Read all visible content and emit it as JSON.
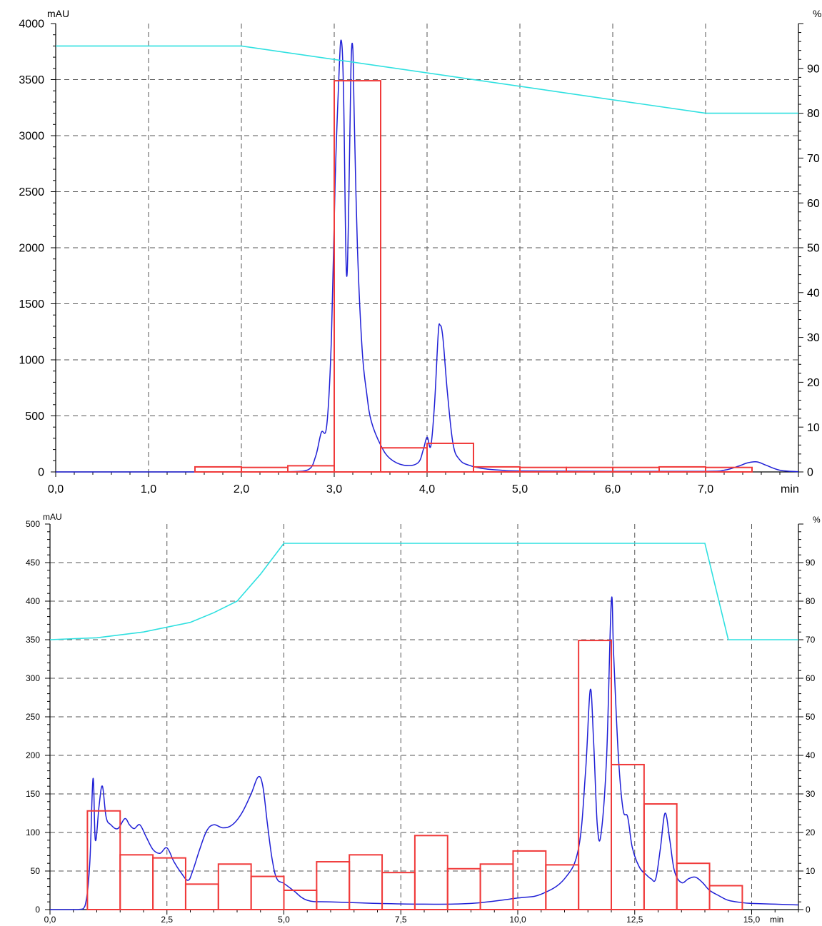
{
  "chart_data": [
    {
      "type": "line",
      "left_unit": "mAU",
      "right_unit": "%",
      "x_unit": "min",
      "xlim": [
        0,
        8
      ],
      "ylim": [
        0,
        4000
      ],
      "y2lim": [
        0,
        100
      ],
      "x_ticks": [
        "0,0",
        "1,0",
        "2,0",
        "3,0",
        "4,0",
        "5,0",
        "6,0",
        "7,0"
      ],
      "x_tick_values": [
        0,
        1,
        2,
        3,
        4,
        5,
        6,
        7
      ],
      "y_ticks": [
        "0",
        "500",
        "1000",
        "1500",
        "2000",
        "2500",
        "3000",
        "3500",
        "4000"
      ],
      "y_tick_values": [
        0,
        500,
        1000,
        1500,
        2000,
        2500,
        3000,
        3500,
        4000
      ],
      "y2_ticks": [
        "0",
        "10",
        "20",
        "30",
        "40",
        "50",
        "60",
        "70",
        "80",
        "90"
      ],
      "y2_tick_values": [
        0,
        10,
        20,
        30,
        40,
        50,
        60,
        70,
        80,
        90
      ],
      "grid": true,
      "colors": {
        "signal": "#1f1fd6",
        "fractions": "#f03a3a",
        "gradient": "#2fe0e0"
      },
      "series": [
        {
          "kind": "signal_mAU",
          "x": [
            0,
            1.0,
            2.0,
            2.5,
            2.72,
            2.8,
            2.86,
            2.92,
            2.97,
            3.01,
            3.05,
            3.075,
            3.1,
            3.13,
            3.155,
            3.18,
            3.2,
            3.215,
            3.25,
            3.3,
            3.35,
            3.4,
            3.5,
            3.6,
            3.75,
            3.9,
            3.96,
            4.0,
            4.04,
            4.08,
            4.12,
            4.14,
            4.17,
            4.22,
            4.28,
            4.35,
            4.45,
            4.6,
            4.8,
            5.0,
            6.0,
            7.0,
            7.2,
            7.35,
            7.45,
            7.55,
            7.65,
            7.8,
            8.0
          ],
          "values": [
            0,
            0,
            0,
            2,
            20,
            140,
            350,
            420,
            1200,
            2600,
            3520,
            3850,
            3400,
            1800,
            2300,
            3600,
            3780,
            3200,
            2000,
            1100,
            700,
            450,
            240,
            120,
            60,
            80,
            200,
            310,
            230,
            600,
            1230,
            1310,
            1200,
            700,
            250,
            110,
            60,
            30,
            15,
            8,
            5,
            5,
            15,
            50,
            80,
            90,
            60,
            15,
            2
          ]
        },
        {
          "kind": "gradient_percent",
          "x": [
            0,
            2.0,
            7.0,
            8.0
          ],
          "values": [
            95,
            95,
            80,
            80
          ]
        },
        {
          "kind": "fraction_mAU",
          "x_start": [
            1.5,
            2.0,
            2.5,
            3.0,
            3.5,
            4.0,
            4.5,
            5.0,
            5.5,
            6.0,
            6.5,
            7.0
          ],
          "x_end": [
            2.0,
            2.5,
            3.0,
            3.5,
            4.0,
            4.5,
            5.0,
            5.5,
            6.0,
            6.5,
            7.0,
            7.5
          ],
          "values": [
            45,
            40,
            55,
            3490,
            215,
            255,
            45,
            40,
            40,
            40,
            45,
            40
          ]
        }
      ]
    },
    {
      "type": "line",
      "left_unit": "mAU",
      "right_unit": "%",
      "x_unit": "min",
      "xlim": [
        0,
        16
      ],
      "ylim": [
        0,
        500
      ],
      "y2lim": [
        0,
        100
      ],
      "x_ticks": [
        "0,0",
        "2,5",
        "5,0",
        "7,5",
        "10,0",
        "12,5",
        "15,0"
      ],
      "x_tick_values": [
        0,
        2.5,
        5,
        7.5,
        10,
        12.5,
        15
      ],
      "y_ticks": [
        "0",
        "50",
        "100",
        "150",
        "200",
        "250",
        "300",
        "350",
        "400",
        "450",
        "500"
      ],
      "y_tick_values": [
        0,
        50,
        100,
        150,
        200,
        250,
        300,
        350,
        400,
        450,
        500
      ],
      "y2_ticks": [
        "0",
        "10",
        "20",
        "30",
        "40",
        "50",
        "60",
        "70",
        "80",
        "90"
      ],
      "y2_tick_values": [
        0,
        10,
        20,
        30,
        40,
        50,
        60,
        70,
        80,
        90
      ],
      "grid": true,
      "colors": {
        "signal": "#1f1fd6",
        "fractions": "#f03a3a",
        "gradient": "#2fe0e0"
      },
      "series": [
        {
          "kind": "signal_mAU",
          "x": [
            0,
            0.6,
            0.75,
            0.85,
            0.92,
            0.97,
            1.05,
            1.12,
            1.2,
            1.3,
            1.45,
            1.6,
            1.7,
            1.8,
            1.92,
            2.05,
            2.2,
            2.35,
            2.5,
            2.65,
            2.8,
            2.95,
            3.05,
            3.2,
            3.35,
            3.5,
            3.7,
            3.9,
            4.1,
            4.3,
            4.45,
            4.55,
            4.65,
            4.75,
            4.85,
            5.0,
            5.2,
            5.5,
            6.0,
            7.0,
            8.0,
            9.0,
            10.0,
            10.5,
            11.0,
            11.3,
            11.45,
            11.55,
            11.62,
            11.7,
            11.78,
            11.9,
            12.0,
            12.05,
            12.15,
            12.25,
            12.35,
            12.45,
            12.6,
            12.75,
            12.85,
            12.95,
            13.05,
            13.15,
            13.25,
            13.35,
            13.5,
            13.65,
            13.8,
            13.95,
            14.1,
            14.3,
            14.5,
            14.8,
            15.0,
            15.5,
            16.0
          ],
          "values": [
            0,
            0,
            5,
            60,
            170,
            90,
            135,
            160,
            120,
            110,
            105,
            118,
            110,
            105,
            110,
            95,
            78,
            73,
            80,
            62,
            48,
            38,
            50,
            78,
            102,
            110,
            106,
            110,
            125,
            150,
            172,
            160,
            110,
            65,
            40,
            34,
            25,
            12,
            10,
            8,
            7,
            8,
            15,
            20,
            40,
            80,
            180,
            285,
            220,
            110,
            98,
            200,
            400,
            330,
            200,
            130,
            120,
            80,
            55,
            45,
            40,
            40,
            80,
            125,
            90,
            50,
            35,
            40,
            42,
            35,
            25,
            18,
            12,
            9,
            8,
            7,
            6
          ]
        },
        {
          "kind": "gradient_percent",
          "x": [
            0,
            1.0,
            2.0,
            3.0,
            3.5,
            4.0,
            4.5,
            5.0,
            14.0,
            14.5,
            16.0
          ],
          "values": [
            70,
            70.5,
            72,
            74.5,
            77,
            80,
            87,
            95,
            95,
            70,
            70
          ]
        },
        {
          "kind": "fraction_mAU",
          "x_start": [
            0.8,
            1.5,
            2.2,
            2.9,
            3.6,
            4.3,
            5.0,
            5.7,
            6.4,
            7.1,
            7.8,
            8.5,
            9.2,
            9.9,
            10.6,
            11.3,
            12.0,
            12.7,
            13.4,
            14.1
          ],
          "x_end": [
            1.5,
            2.2,
            2.9,
            3.6,
            4.3,
            5.0,
            5.7,
            6.4,
            7.1,
            7.8,
            8.5,
            9.2,
            9.9,
            10.6,
            11.3,
            12.0,
            12.7,
            13.4,
            14.1,
            14.8
          ],
          "values": [
            128,
            71,
            67,
            33,
            59,
            43,
            25,
            62,
            71,
            48,
            96,
            53,
            59,
            76,
            58,
            349,
            188,
            137,
            60,
            31
          ]
        }
      ]
    }
  ]
}
